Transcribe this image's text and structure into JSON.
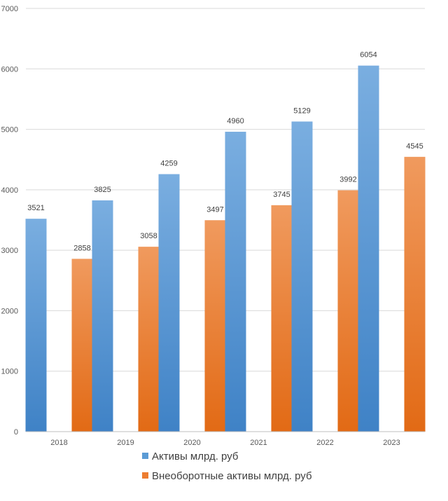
{
  "chart_data": {
    "type": "bar",
    "categories": [
      "2018",
      "2019",
      "2020",
      "2021",
      "2022",
      "2023"
    ],
    "series": [
      {
        "name": "Активы млрд. руб",
        "values": [
          3521,
          3825,
          4259,
          4960,
          5129,
          6054
        ],
        "color": "#5B9BD5"
      },
      {
        "name": "Внеоборотные активы млрд. руб",
        "values": [
          2858,
          3058,
          3497,
          3745,
          3992,
          4545
        ],
        "color": "#ED7D31"
      }
    ],
    "ylim": [
      0,
      7000
    ],
    "yticks": [
      0,
      1000,
      2000,
      3000,
      4000,
      5000,
      6000,
      7000
    ],
    "grid": true,
    "legend_position": "bottom"
  }
}
